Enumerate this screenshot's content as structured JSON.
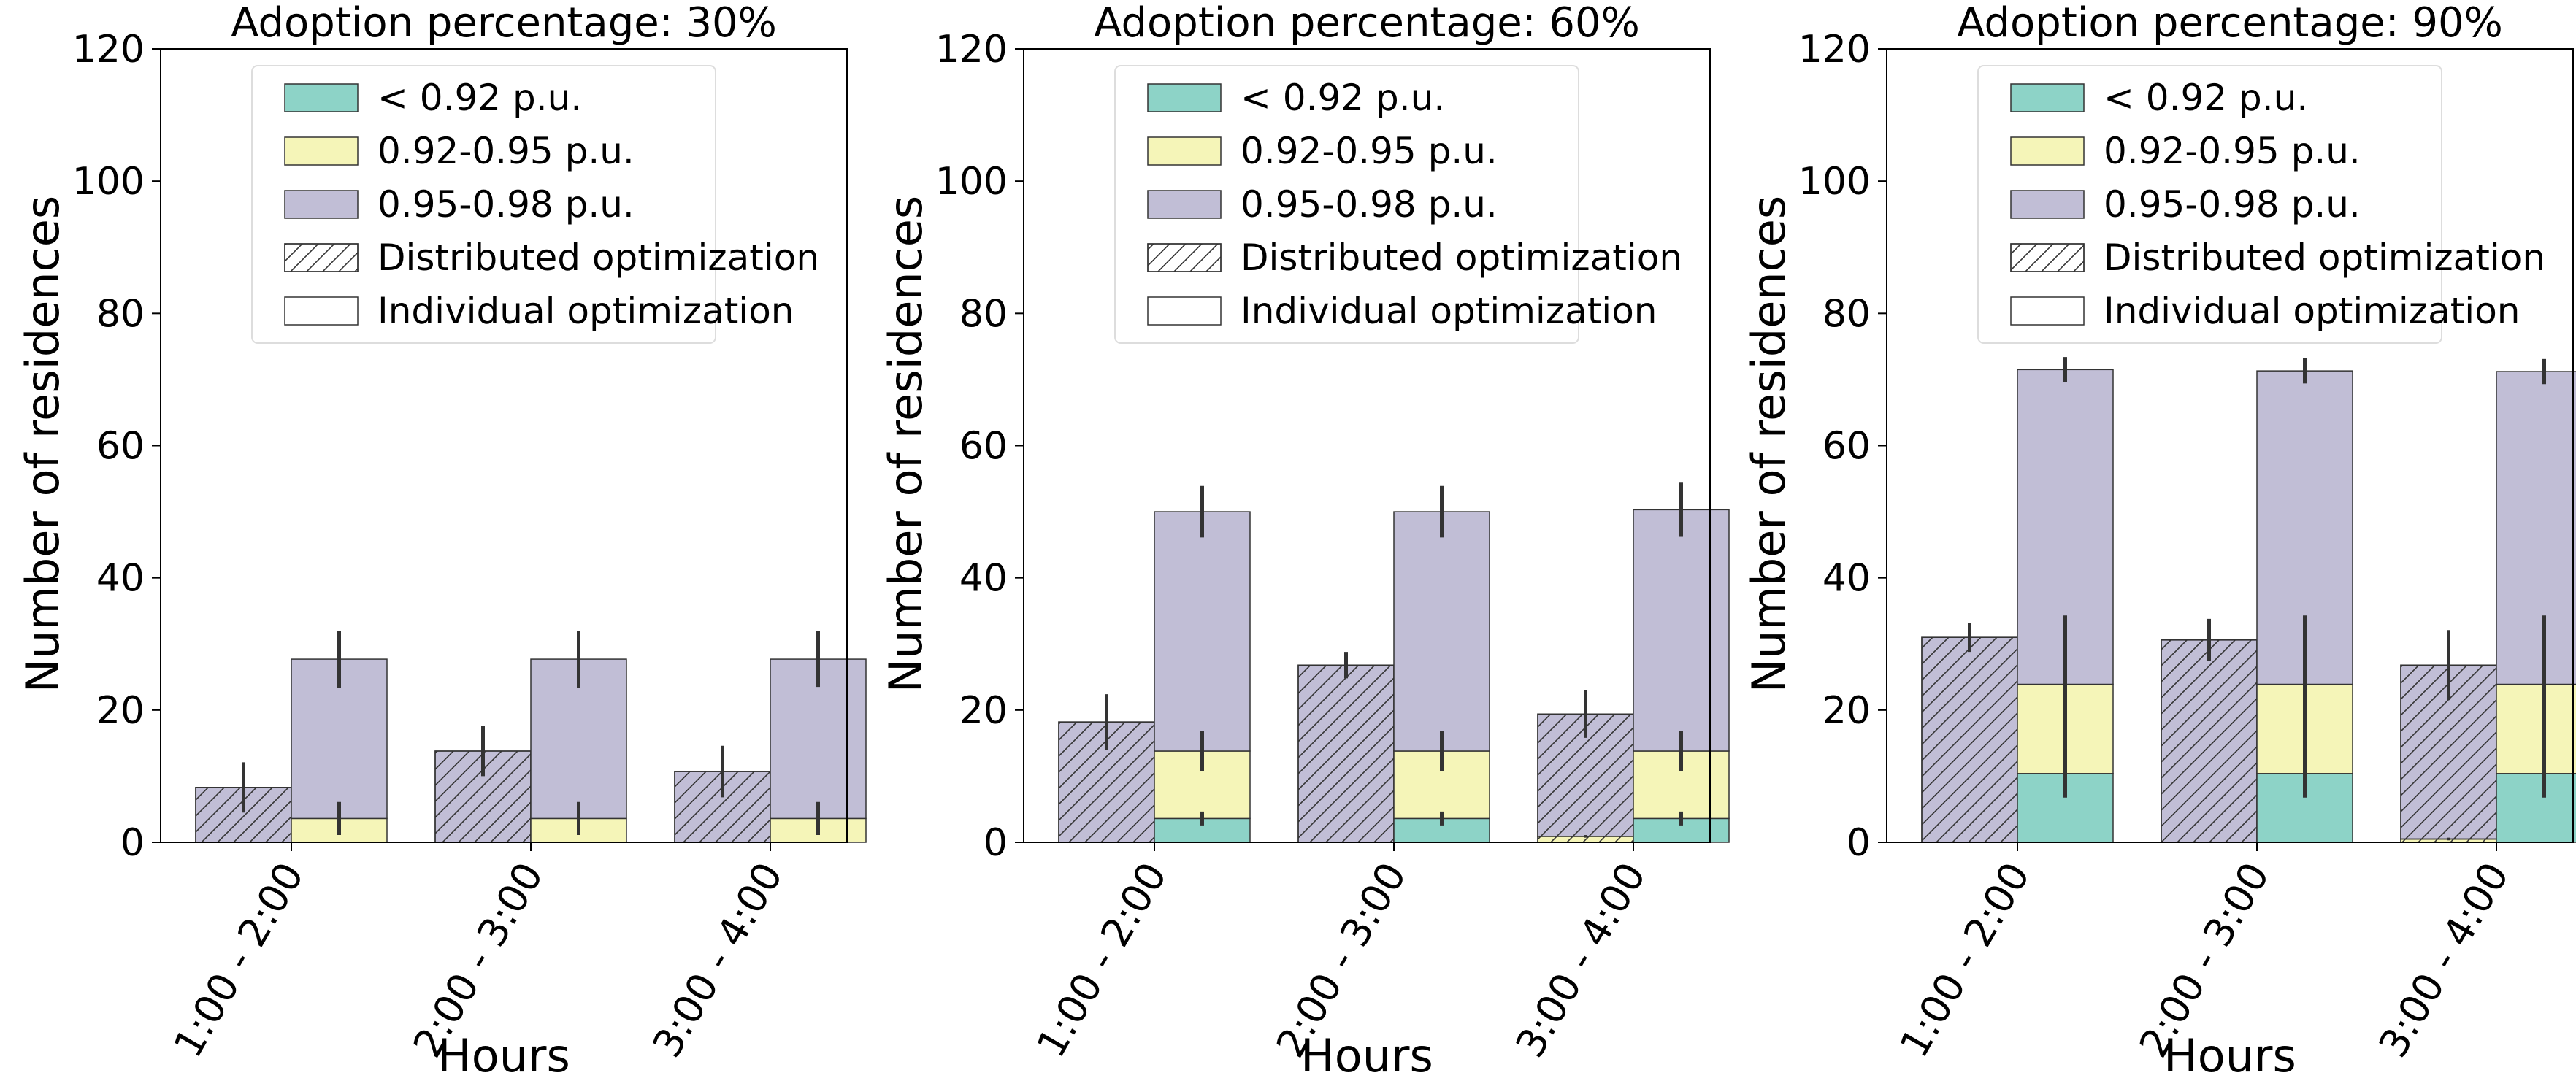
{
  "chart_data": [
    {
      "type": "bar",
      "title": "Adoption percentage: 30%",
      "xlabel": "Hours",
      "ylabel": "Number of residences",
      "ylim": [
        0,
        120
      ],
      "yticks": [
        "0",
        "20",
        "40",
        "60",
        "80",
        "100",
        "120"
      ],
      "categories": [
        "1:00 - 2:00",
        "2:00 - 3:00",
        "3:00 - 4:00"
      ],
      "legend_position": "top-right",
      "legend": [
        "< 0.92 p.u.",
        "0.92-0.95 p.u.",
        "0.95-0.98 p.u.",
        "Distributed optimization",
        "Individual optimization"
      ],
      "bars": {
        "distributed": {
          "lt092": [
            0,
            0,
            0
          ],
          "b092_095": [
            0,
            0,
            0
          ],
          "b095_098": [
            8.3,
            13.8,
            10.7
          ],
          "error": [
            3.8,
            3.8,
            3.9
          ],
          "error_base": [
            0,
            0,
            0
          ]
        },
        "individual": {
          "lt092": [
            0,
            0,
            0
          ],
          "b092_095": [
            3.6,
            3.6,
            3.6
          ],
          "b095_098": [
            24.1,
            24.1,
            24.1
          ],
          "error": [
            4.3,
            4.3,
            4.2
          ],
          "error_base": [
            2.5,
            2.5,
            2.5
          ]
        }
      }
    },
    {
      "type": "bar",
      "title": "Adoption percentage: 60%",
      "xlabel": "Hours",
      "ylabel": "Number of residences",
      "ylim": [
        0,
        120
      ],
      "yticks": [
        "0",
        "20",
        "40",
        "60",
        "80",
        "100",
        "120"
      ],
      "categories": [
        "1:00 - 2:00",
        "2:00 - 3:00",
        "3:00 - 4:00"
      ],
      "legend_position": "top-right",
      "legend": [
        "< 0.92 p.u.",
        "0.92-0.95 p.u.",
        "0.95-0.98 p.u.",
        "Distributed optimization",
        "Individual optimization"
      ],
      "bars": {
        "distributed": {
          "lt092": [
            0,
            0,
            0
          ],
          "b092_095": [
            0,
            0,
            0.9
          ],
          "b095_098": [
            18.2,
            26.8,
            18.5
          ],
          "error": [
            4.2,
            2.0,
            3.6
          ],
          "error_base": [
            0,
            0,
            0.2
          ]
        },
        "individual": {
          "lt092": [
            3.6,
            3.6,
            3.6
          ],
          "b092_095": [
            10.2,
            10.2,
            10.2
          ],
          "b095_098": [
            36.2,
            36.2,
            36.5
          ],
          "error": [
            3.9,
            3.9,
            4.1
          ],
          "error_base": [
            3.0,
            3.0,
            3.0
          ]
        }
      }
    },
    {
      "type": "bar",
      "title": "Adoption percentage: 90%",
      "xlabel": "Hours",
      "ylabel": "Number of residences",
      "ylim": [
        0,
        120
      ],
      "yticks": [
        "0",
        "20",
        "40",
        "60",
        "80",
        "100",
        "120"
      ],
      "categories": [
        "1:00 - 2:00",
        "2:00 - 3:00",
        "3:00 - 4:00"
      ],
      "legend_position": "top-right",
      "legend": [
        "< 0.92 p.u.",
        "0.92-0.95 p.u.",
        "0.95-0.98 p.u.",
        "Distributed optimization",
        "Individual optimization"
      ],
      "bars": {
        "distributed": {
          "lt092": [
            0,
            0,
            0
          ],
          "b092_095": [
            0,
            0,
            0.5
          ],
          "b095_098": [
            31.0,
            30.6,
            26.3
          ],
          "error": [
            2.2,
            3.2,
            5.3
          ],
          "error_base": [
            0,
            0,
            0.2
          ]
        },
        "individual": {
          "lt092": [
            10.4,
            10.4,
            10.4
          ],
          "b092_095": [
            13.5,
            13.5,
            13.5
          ],
          "b095_098": [
            47.6,
            47.4,
            47.3
          ],
          "error": [
            1.9,
            1.9,
            1.9
          ],
          "error_base": [
            10.4,
            10.4,
            10.4
          ]
        }
      }
    }
  ],
  "colors": {
    "lt092": "#8dd3c7",
    "b092_095": "#f5f5b8",
    "b095_098": "#c1bed6",
    "edge": "#333333",
    "errorbar": "#333333",
    "hatch": "#333333"
  }
}
